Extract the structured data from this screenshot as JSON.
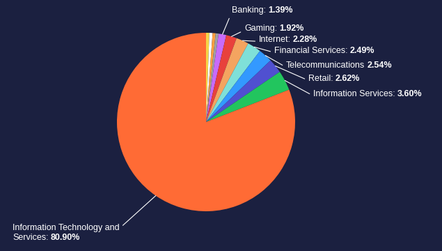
{
  "chart_data": {
    "type": "pie",
    "categories": [
      null,
      null,
      null,
      null,
      "Banking:",
      "Gaming:",
      "Internet:",
      "Financial Services:",
      "Telecommunications",
      "Retail:",
      "Information Services:",
      "Information Technology and\nServices:"
    ],
    "values": [
      0.6,
      0.58,
      0.55,
      0.53,
      1.39,
      1.92,
      2.28,
      2.49,
      2.54,
      2.62,
      3.6,
      80.9
    ],
    "value_labels": [
      null,
      null,
      null,
      null,
      "1.39%",
      "1.92%",
      "2.28%",
      "2.49%",
      "2.54%",
      "2.62%",
      "3.60%",
      "80.90%"
    ],
    "colors": [
      "#f5d547",
      "#ffffff",
      "#ff9f40",
      "#a0a0a0",
      "#c86bfa",
      "#e8413c",
      "#f4a460",
      "#7fe0d8",
      "#3399ff",
      "#5050d0",
      "#22c55e",
      "#ff6b35"
    ],
    "data_labels": true
  }
}
